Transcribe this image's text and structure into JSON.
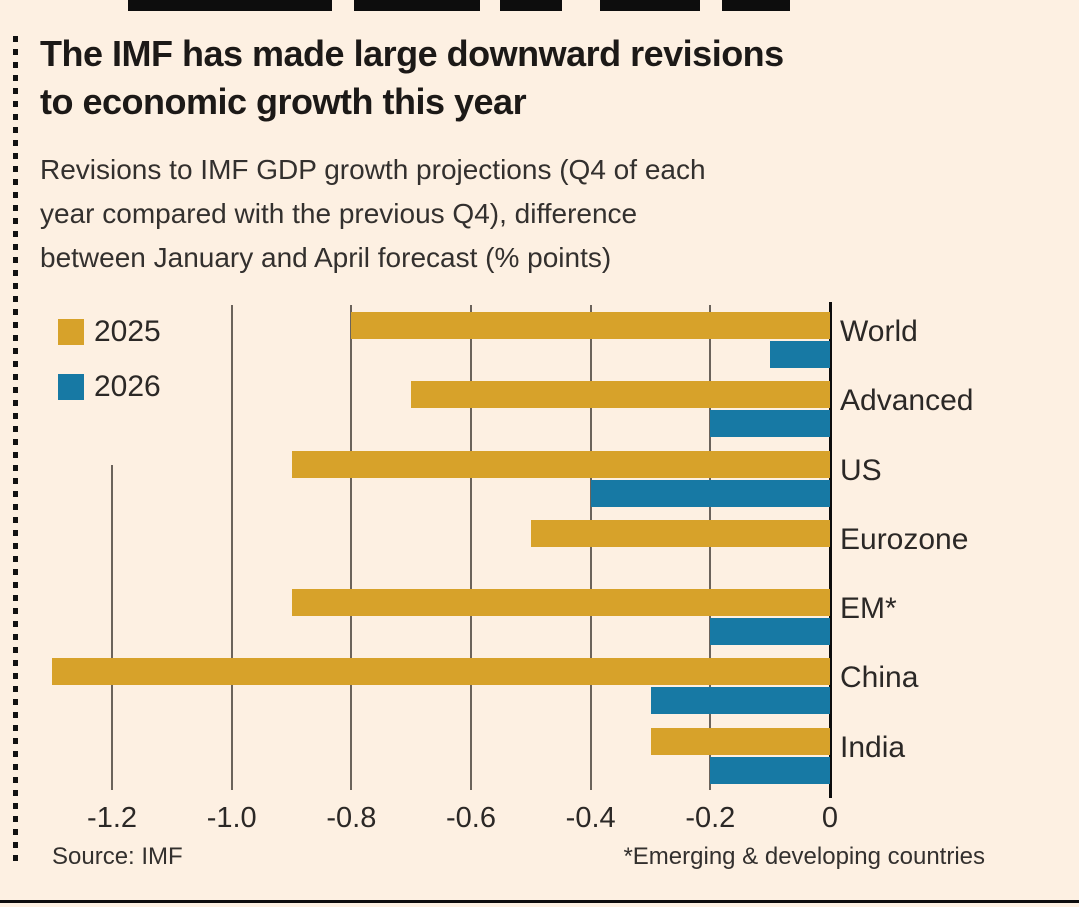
{
  "header": {
    "title_lines": [
      "The IMF has made large downward revisions",
      "to economic growth this year"
    ],
    "subtitle_lines": [
      "Revisions to IMF GDP growth projections (Q4 of each",
      "year compared with the previous Q4), difference",
      "between January and April forecast (% points)"
    ]
  },
  "chart_data": {
    "type": "bar",
    "orientation": "horizontal",
    "title": "The IMF has made large downward revisions to economic growth this year",
    "subtitle": "Revisions to IMF GDP growth projections (Q4 of each year compared with the previous Q4), difference between January and April forecast (% points)",
    "categories": [
      "World",
      "Advanced",
      "US",
      "Eurozone",
      "EM*",
      "China",
      "India"
    ],
    "series": [
      {
        "name": "2025",
        "color": "#d7a22a",
        "values": [
          -0.8,
          -0.7,
          -0.9,
          -0.5,
          -0.9,
          -1.3,
          -0.3
        ]
      },
      {
        "name": "2026",
        "color": "#1779a4",
        "values": [
          -0.1,
          -0.2,
          -0.4,
          0.0,
          -0.2,
          -0.3,
          -0.2
        ]
      }
    ],
    "xlim": [
      -1.35,
      0
    ],
    "xticks": [
      -1.2,
      -1.0,
      -0.8,
      -0.6,
      -0.4,
      -0.2,
      0
    ],
    "xtick_labels": [
      "-1.2",
      "-1.0",
      "-0.8",
      "-0.6",
      "-0.4",
      "-0.2",
      "0"
    ],
    "grid": true,
    "legend_position": "top-left"
  },
  "footer": {
    "source": "Source: IMF",
    "note": "*Emerging & developing countries"
  },
  "colors": {
    "background": "#fdf0e2",
    "text": "#33302e",
    "grid": "#6b635b",
    "axis": "#0d0d0d",
    "gold_2025": "#d7a22a",
    "teal_2026": "#1779a4"
  }
}
